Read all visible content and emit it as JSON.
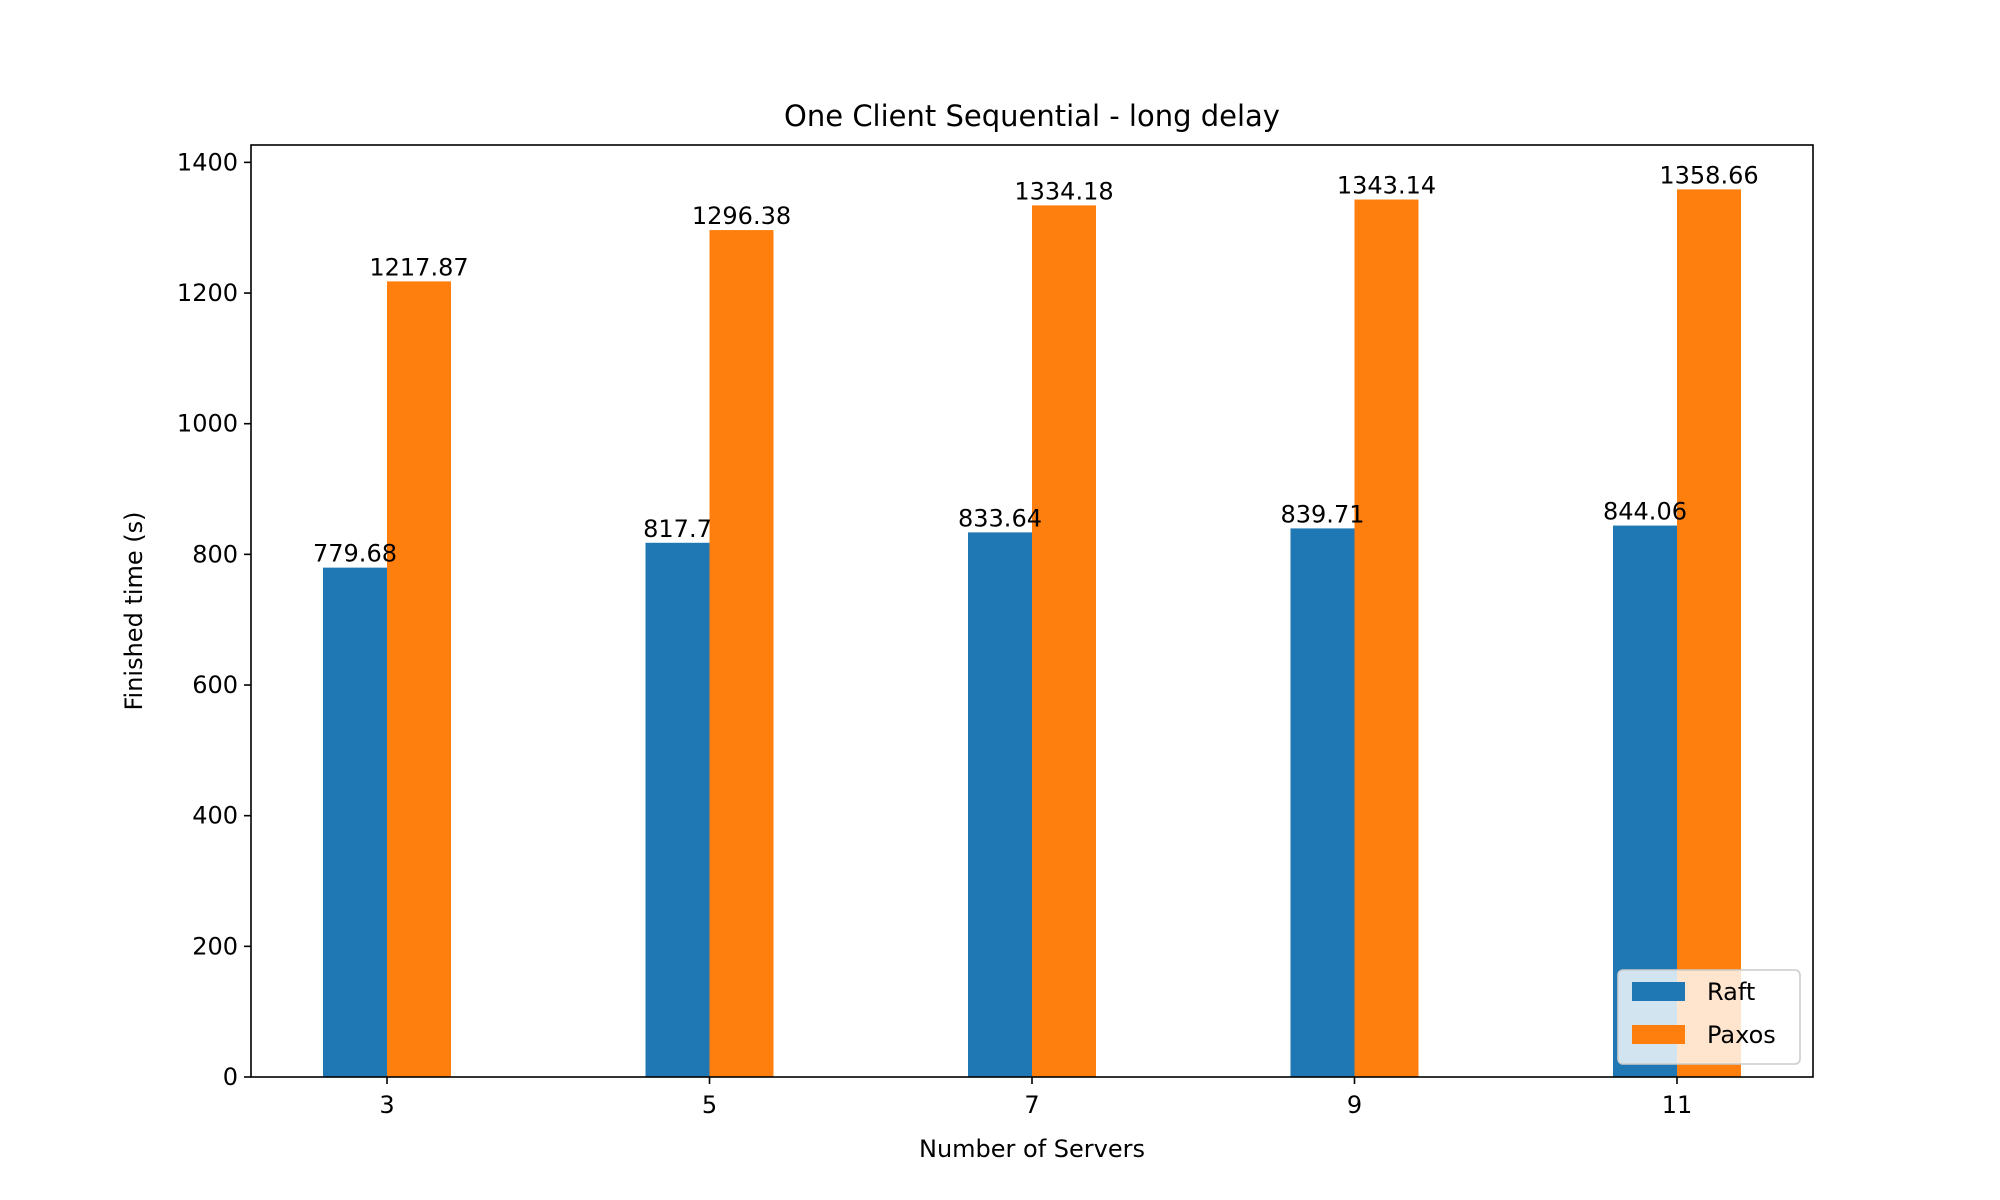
{
  "chart_data": {
    "type": "bar",
    "title": "One Client Sequential - long delay",
    "xlabel": "Number of Servers",
    "ylabel": "Finished time (s)",
    "categories": [
      "3",
      "5",
      "7",
      "9",
      "11"
    ],
    "series": [
      {
        "name": "Raft",
        "values": [
          779.68,
          817.7,
          833.64,
          839.71,
          844.06
        ],
        "labels": [
          "779.68",
          "817.7",
          "833.64",
          "839.71",
          "844.06"
        ],
        "color": "#1f77b4"
      },
      {
        "name": "Paxos",
        "values": [
          1217.87,
          1296.38,
          1334.18,
          1343.14,
          1358.66
        ],
        "labels": [
          "1217.87",
          "1296.38",
          "1334.18",
          "1343.14",
          "1358.66"
        ],
        "color": "#ff7f0e"
      }
    ],
    "yticks": [
      0,
      200,
      400,
      600,
      800,
      1000,
      1200,
      1400
    ],
    "ytick_labels": [
      "0",
      "200",
      "400",
      "600",
      "800",
      "1000",
      "1200",
      "1400"
    ],
    "ylim": [
      0,
      1426.6
    ],
    "grid": false,
    "legend_position": "lower-right"
  }
}
